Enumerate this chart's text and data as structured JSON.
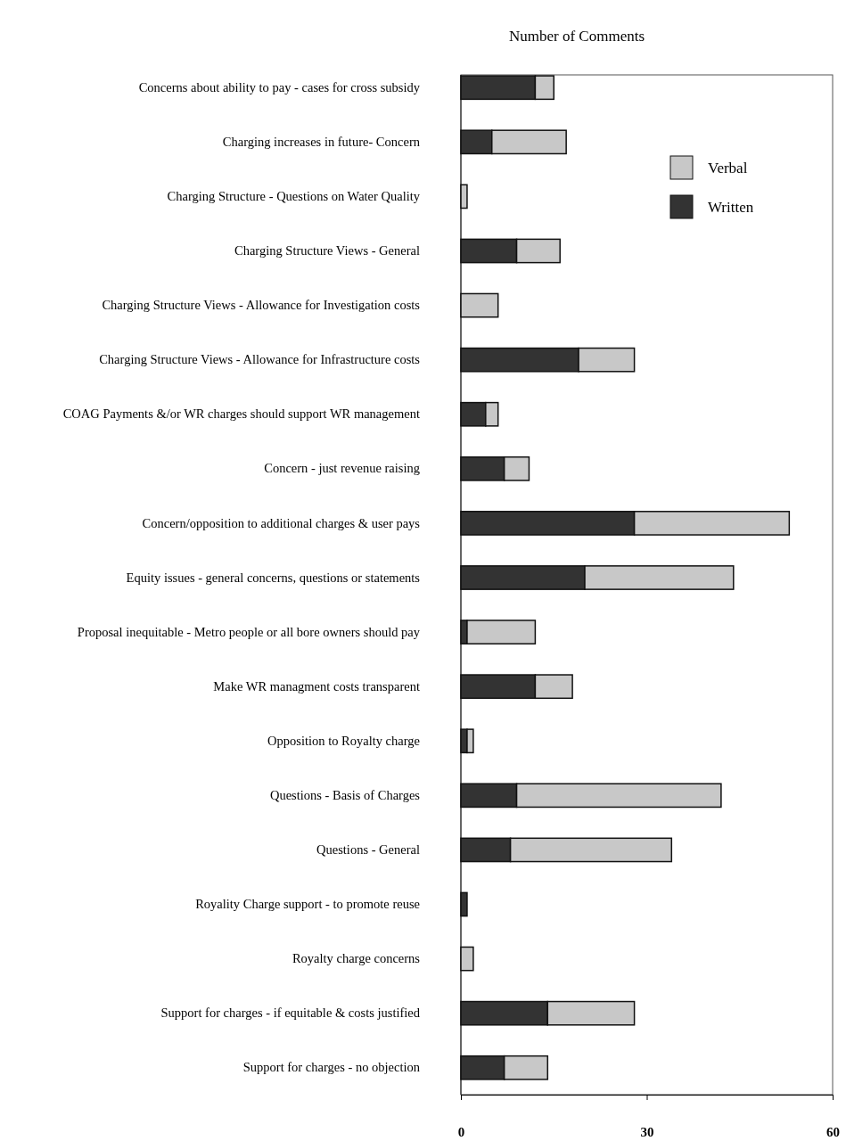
{
  "chart_data": {
    "type": "bar",
    "orientation": "horizontal",
    "stacked": true,
    "title": "Number of Comments",
    "categories": [
      "Concerns about ability to pay  - cases for cross subsidy",
      "Charging increases in future- Concern",
      "Charging Structure  - Questions on Water  Quality",
      "Charging Structure Views -  General",
      "Charging Structure Views - Allowance for Investigation costs",
      "Charging Structure Views - Allowance for Infrastructure costs",
      "COAG Payments &/or  WR charges should support WR management",
      "Concern - just revenue raising",
      "Concern/opposition to additional charges & user pays",
      "Equity issues - general concerns, questions or statements",
      "Proposal inequitable - Metro people  or all bore owners should pay",
      "Make WR managment costs transparent",
      "Opposition to Royalty charge",
      "Questions - Basis of Charges",
      "Questions - General",
      "Royality Charge support -  to promote reuse",
      "Royalty charge concerns",
      "Support for charges - if equitable & costs justified",
      "Support for charges - no objection"
    ],
    "series": [
      {
        "name": "Written",
        "color": "#333333",
        "values": [
          12,
          5,
          0,
          9,
          0,
          19,
          4,
          7,
          28,
          20,
          1,
          12,
          1,
          9,
          8,
          1,
          0,
          14,
          7
        ]
      },
      {
        "name": "Verbal",
        "color": "#c8c8c8",
        "values": [
          3,
          12,
          1,
          7,
          6,
          9,
          2,
          4,
          25,
          24,
          11,
          6,
          1,
          33,
          26,
          0,
          2,
          14,
          7
        ]
      }
    ],
    "xlim": [
      0,
      60
    ],
    "xticks": [
      0,
      30,
      60
    ],
    "legend": "top right",
    "grid": false
  }
}
